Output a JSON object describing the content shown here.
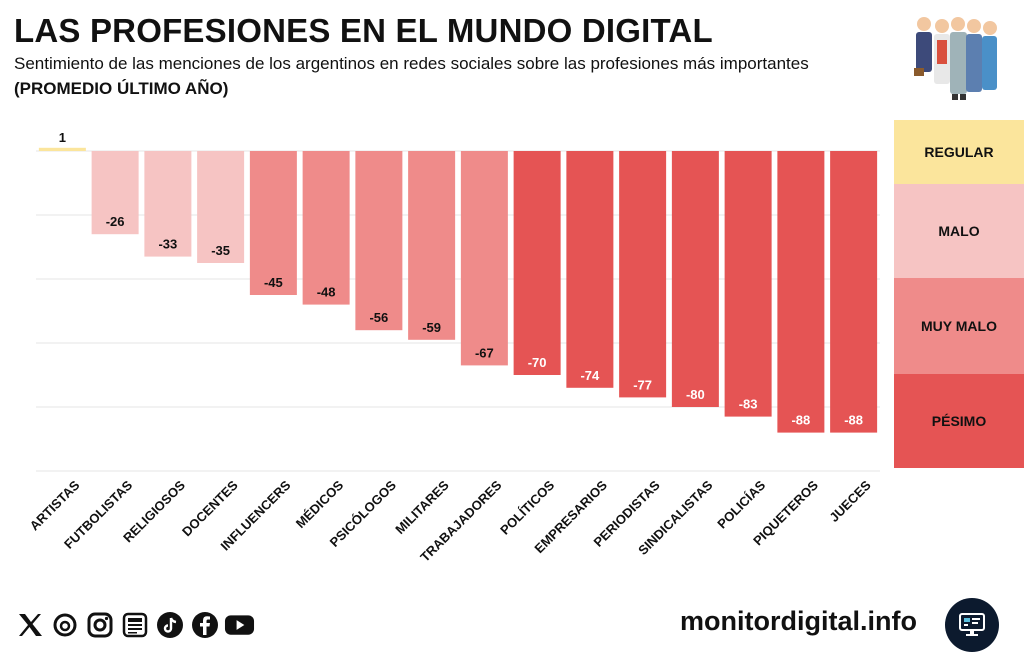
{
  "header": {
    "title": "LAS PROFESIONES EN EL MUNDO DIGITAL",
    "subtitle": "Sentimiento de las menciones de los argentinos en redes sociales sobre las profesiones más importantes",
    "note": "(PROMEDIO ÚLTIMO AÑO)"
  },
  "illustration": {
    "icon": "professionals-group-icon"
  },
  "chart_data": {
    "type": "bar",
    "categories": [
      "ARTISTAS",
      "FUTBOLISTAS",
      "RELIGIOSOS",
      "DOCENTES",
      "INFLUENCERS",
      "MÉDICOS",
      "PSICÓLOGOS",
      "MILITARES",
      "TRABAJADORES",
      "POLÍTICOS",
      "EMPRESARIOS",
      "PERIODISTAS",
      "SINDICALISTAS",
      "POLICÍAS",
      "PIQUETEROS",
      "JUECES"
    ],
    "values": [
      1,
      -26,
      -33,
      -35,
      -45,
      -48,
      -56,
      -59,
      -67,
      -70,
      -74,
      -77,
      -80,
      -83,
      -88,
      -88
    ],
    "labels": [
      "1",
      "-26",
      "-33",
      "-35",
      "-45",
      "-48",
      "-56",
      "-59",
      "-67",
      "-70",
      "-74",
      "-77",
      "-80",
      "-83",
      "-88",
      "-88"
    ],
    "ylim": [
      -100,
      0
    ],
    "grid": true,
    "legend": "right",
    "categories_sentiment": [
      "REGULAR",
      "MALO",
      "MALO",
      "MALO",
      "MUY MALO",
      "MUY MALO",
      "MUY MALO",
      "MUY MALO",
      "MUY MALO",
      "PÉSIMO",
      "PÉSIMO",
      "PÉSIMO",
      "PÉSIMO",
      "PÉSIMO",
      "PÉSIMO",
      "PÉSIMO"
    ]
  },
  "legend": {
    "items": [
      {
        "label": "REGULAR",
        "color": "#fbe59c"
      },
      {
        "label": "MALO",
        "color": "#f6c4c3"
      },
      {
        "label": "MUY MALO",
        "color": "#ef8b8a"
      },
      {
        "label": "PÉSIMO",
        "color": "#e55454"
      }
    ]
  },
  "footer": {
    "socials": [
      "x-icon",
      "threads-icon",
      "instagram-icon",
      "news-icon",
      "tiktok-icon",
      "facebook-icon",
      "youtube-icon"
    ],
    "brand": "monitordigital.info",
    "brand_icon": "monitor-icon"
  }
}
